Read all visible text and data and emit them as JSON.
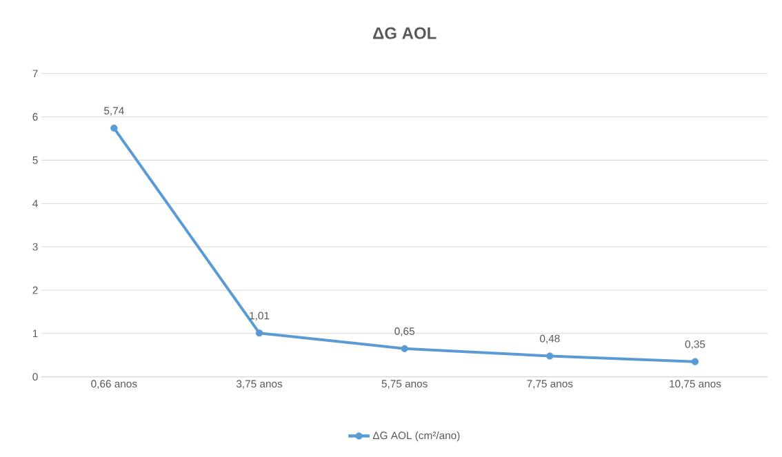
{
  "chart_data": {
    "type": "line",
    "title": "ΔG AOL",
    "categories": [
      "0,66 anos",
      "3,75 anos",
      "5,75 anos",
      "7,75 anos",
      "10,75 anos"
    ],
    "series": [
      {
        "name": "ΔG AOL (cm²/ano)",
        "color": "#5b9bd5",
        "values": [
          5.74,
          1.01,
          0.65,
          0.48,
          0.35
        ],
        "value_labels": [
          "5,74",
          "1,01",
          "0,65",
          "0,48",
          "0,35"
        ]
      }
    ],
    "ylim": [
      0,
      7
    ],
    "yticks": [
      0,
      1,
      2,
      3,
      4,
      5,
      6,
      7
    ],
    "grid": "y",
    "legend": "bottom",
    "marker": "circle",
    "line_style": "solid"
  }
}
